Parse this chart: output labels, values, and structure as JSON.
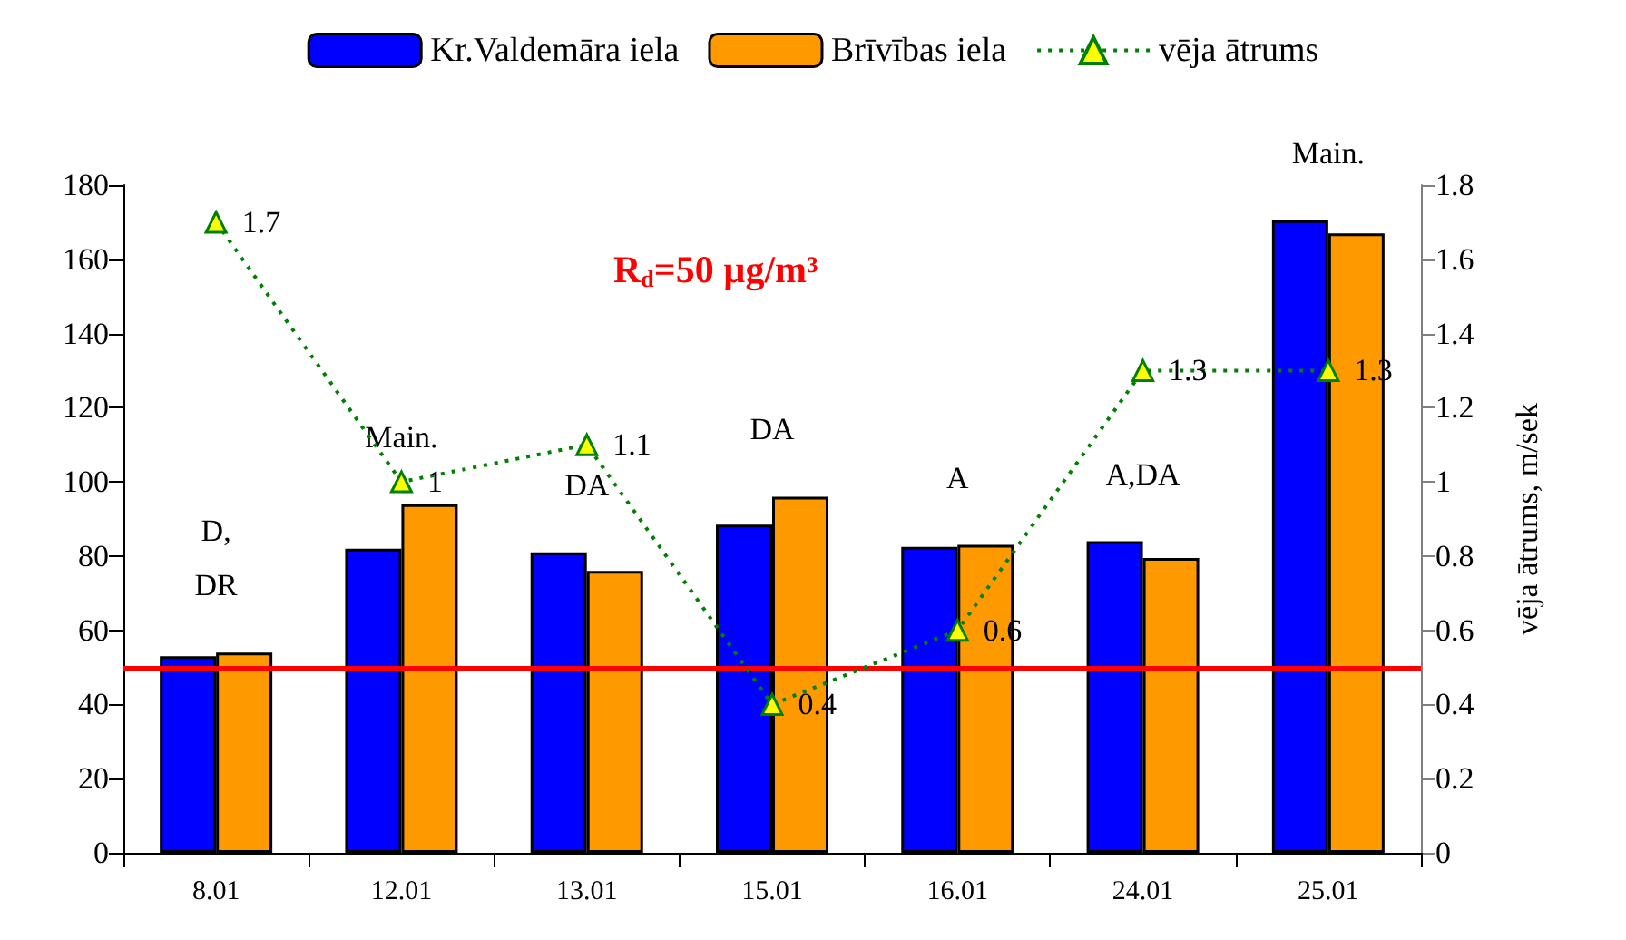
{
  "chart_data": {
    "type": "bar",
    "categories": [
      "8.01",
      "12.01",
      "13.01",
      "15.01",
      "16.01",
      "24.01",
      "25.01"
    ],
    "series": [
      {
        "name": "Kr.Valdemāra iela",
        "color": "#0000ff",
        "values": [
          53,
          82,
          81,
          88.5,
          82.5,
          84,
          170.5
        ]
      },
      {
        "name": "Brīvības iela",
        "color": "#ff9900",
        "values": [
          54,
          94,
          76,
          96,
          83,
          79.5,
          167
        ]
      },
      {
        "name": "vēja ātrums",
        "type": "line",
        "axis": "y2",
        "color": "#008000",
        "marker": "triangle",
        "line_style": "dotted",
        "data_labels": true,
        "values": [
          1.7,
          1,
          1.1,
          0.4,
          0.6,
          1.3,
          1.3
        ]
      }
    ],
    "ylim": [
      0,
      180
    ],
    "yticks": [
      0,
      20,
      40,
      60,
      80,
      100,
      120,
      140,
      160,
      180
    ],
    "y2lim": [
      0,
      1.8
    ],
    "y2ticks": [
      0,
      0.2,
      0.4,
      0.6,
      0.8,
      1,
      1.2,
      1.4,
      1.6,
      1.8
    ],
    "y2label": "vēja ātrums, m/sek",
    "ref_lines": [
      {
        "axis": "y",
        "value": 50,
        "label": "R$_{d}$=50 µg/m³",
        "color": "#ff0000"
      }
    ],
    "annotations": [
      "D,\nDR",
      "Main.",
      "DA",
      "DA",
      "A",
      "A,DA",
      "Main."
    ],
    "legend": "top",
    "grid": false
  }
}
